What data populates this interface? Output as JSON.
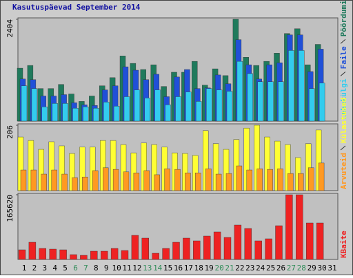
{
  "chart_data": [
    {
      "type": "bar",
      "title": "Kasutuspäevad September 2014",
      "categories": [
        "1",
        "2",
        "3",
        "4",
        "5",
        "6",
        "7",
        "8",
        "9",
        "10",
        "11",
        "12",
        "13",
        "14",
        "15",
        "16",
        "17",
        "18",
        "19",
        "20",
        "21",
        "22",
        "23",
        "24",
        "25",
        "26",
        "27",
        "28",
        "29",
        "30",
        "31"
      ],
      "category_colors": [
        "#000000",
        "#000000",
        "#000000",
        "#000000",
        "#000000",
        "#2e8b57",
        "#2e8b57",
        "#000000",
        "#000000",
        "#000000",
        "#000000",
        "#000000",
        "#2e8b57",
        "#2e8b57",
        "#000000",
        "#000000",
        "#000000",
        "#000000",
        "#000000",
        "#2e8b57",
        "#2e8b57",
        "#000000",
        "#000000",
        "#000000",
        "#000000",
        "#000000",
        "#2e8b57",
        "#2e8b57",
        "#000000",
        "#000000",
        "#000000"
      ],
      "ylim": [
        0,
        2404
      ],
      "yticks": [
        2404
      ],
      "series": [
        {
          "name": "Pöördumisi",
          "color": "#1f7a5c",
          "values": [
            1250,
            1314,
            769,
            769,
            866,
            641,
            465,
            593,
            834,
            1026,
            1539,
            1363,
            1218,
            1330,
            818,
            1154,
            1154,
            1411,
            850,
            1234,
            1074,
            2404,
            1507,
            1314,
            1411,
            1603,
            2068,
            2180,
            1330,
            1811,
            null
          ]
        },
        {
          "name": "Faile",
          "color": "#2050d8",
          "values": [
            994,
            978,
            593,
            593,
            625,
            433,
            385,
            369,
            737,
            834,
            1282,
            1202,
            978,
            1106,
            577,
            1042,
            1218,
            769,
            785,
            1090,
            882,
            1923,
            1330,
            994,
            1330,
            1378,
            2036,
            2036,
            1170,
            1699,
            null
          ]
        },
        {
          "name": "Lehekülgi",
          "color": "#33ccee",
          "values": [
            833,
            769,
            337,
            417,
            417,
            305,
            337,
            305,
            449,
            353,
            577,
            737,
            545,
            737,
            385,
            577,
            689,
            465,
            769,
            737,
            705,
            1411,
            1122,
            930,
            930,
            930,
            1667,
            1667,
            769,
            898,
            null
          ]
        }
      ]
    },
    {
      "type": "bar",
      "ylim": [
        0,
        206
      ],
      "yticks": [
        206
      ],
      "series": [
        {
          "name": "Külastused",
          "color": "#ffff33",
          "values": [
            169,
            158,
            130,
            154,
            141,
            117,
            137,
            137,
            158,
            158,
            145,
            119,
            150,
            145,
            137,
            119,
            117,
            111,
            189,
            148,
            130,
            161,
            197,
            206,
            169,
            156,
            145,
            104,
            148,
            191,
            null
          ]
        },
        {
          "name": "Arvuteid",
          "color": "#ff9922",
          "values": [
            65,
            65,
            52,
            65,
            52,
            41,
            43,
            63,
            72,
            67,
            59,
            56,
            63,
            50,
            69,
            67,
            56,
            56,
            69,
            52,
            54,
            78,
            65,
            69,
            67,
            69,
            54,
            54,
            72,
            87,
            null
          ]
        }
      ]
    },
    {
      "type": "bar",
      "ylim": [
        0,
        165620
      ],
      "yticks": [
        165620
      ],
      "series": [
        {
          "name": "KBaite",
          "color": "#ee2222",
          "values": [
            24668,
            44050,
            28192,
            26430,
            24668,
            12334,
            10572,
            21144,
            21144,
            28192,
            22906,
            61670,
            54622,
            15858,
            28192,
            44050,
            54622,
            47574,
            59908,
            70480,
            56384,
            88100,
            79290,
            47574,
            52860,
            86338,
            165620,
            165620,
            93386,
            93386,
            null
          ]
        }
      ]
    }
  ]
}
